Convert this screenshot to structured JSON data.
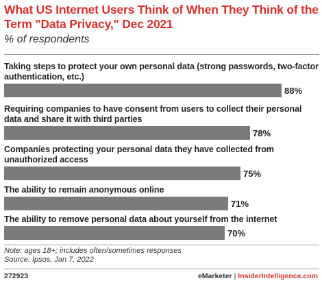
{
  "header": {
    "title": "What US Internet Users Think of When They Think of the Term \"Data Privacy,\" Dec 2021",
    "subtitle": "% of respondents"
  },
  "chart_data": {
    "type": "bar",
    "orientation": "horizontal",
    "title": "What US Internet Users Think of When They Think of the Term \"Data Privacy,\" Dec 2021",
    "subtitle": "% of respondents",
    "categories": [
      "Taking steps to protect your own personal data (strong passwords, two-factor authentication, etc.)",
      "Requiring companies to have consent from users to collect their personal data and share it with third parties",
      "Companies protecting your personal data they have collected from unauthorized access",
      "The ability to remain anonymous online",
      "The ability to remove personal data about yourself from the internet"
    ],
    "values": [
      88,
      78,
      75,
      71,
      70
    ],
    "value_labels": [
      "88%",
      "78%",
      "75%",
      "71%",
      "70%"
    ],
    "xlim": [
      0,
      100
    ],
    "bar_color": "#7b7b7b",
    "grid": false
  },
  "footer": {
    "note": "Note: ages 18+; includes often/sometimes responses",
    "source": "Source: Ipsos, Jan 7, 2022",
    "chart_id": "272923",
    "brand_emarketer": "eMarketer",
    "brand_separator": "|",
    "brand_ii": "InsiderIntelligence.com"
  },
  "colors": {
    "title": "#d9312b",
    "bar": "#7b7b7b"
  }
}
